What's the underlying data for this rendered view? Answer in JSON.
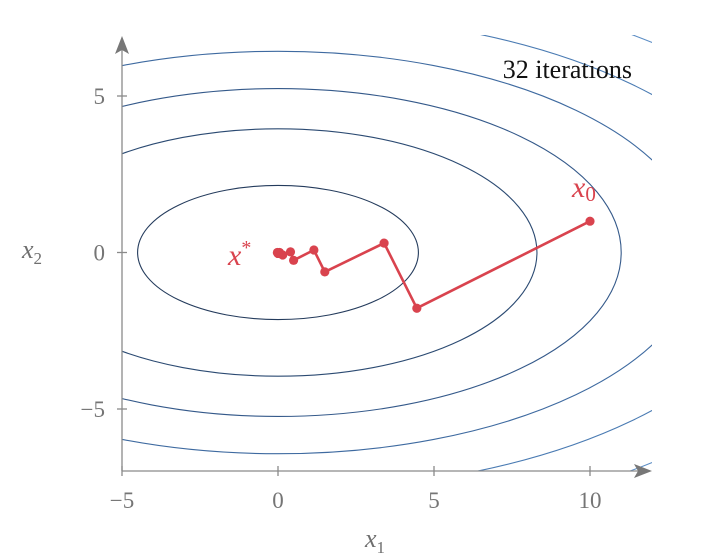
{
  "chart_data": {
    "type": "line",
    "title": "",
    "annotation": "32 iterations",
    "xlabel": "x",
    "xlabel_sub": "1",
    "ylabel": "x",
    "ylabel_sub": "2",
    "xlim": [
      -5,
      12
    ],
    "ylim": [
      -7,
      7
    ],
    "x_ticks": [
      -5,
      0,
      5,
      10
    ],
    "y_ticks": [
      -5,
      0,
      5
    ],
    "x_tick_labels": [
      "−5",
      "0",
      "5",
      "10"
    ],
    "y_tick_labels": [
      "−5",
      "0",
      "5"
    ],
    "grid": false,
    "start_label": "x",
    "start_label_sub": "0",
    "end_label": "x",
    "end_label_sup": "*",
    "path_color": "#d9434e",
    "contour_colors": [
      "#243b5c",
      "#2b4a72",
      "#34598a",
      "#3e6aa0",
      "#4a7bb3",
      "#5a8cc4",
      "#6a9bcf"
    ],
    "contours": {
      "center": [
        0,
        0
      ],
      "semi_axis_ratio": 2.1,
      "x_semi_axes": [
        4.5,
        8.3,
        11.0,
        13.5,
        16.0,
        18.5,
        21.0
      ]
    },
    "series": [
      {
        "x": [
          10.0,
          4.45,
          3.4,
          1.5,
          1.15,
          0.5,
          0.4,
          0.15,
          0.05,
          0.0,
          -0.02
        ],
        "y": [
          1.0,
          -1.78,
          0.3,
          -0.62,
          0.08,
          -0.25,
          0.02,
          -0.08,
          0.0,
          -0.03,
          0.0
        ]
      }
    ]
  }
}
